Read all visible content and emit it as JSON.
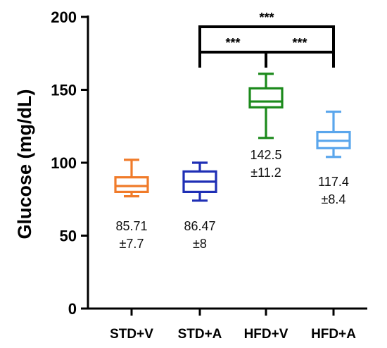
{
  "chart_data": {
    "type": "box",
    "ylabel": "Glucose (mg/dL)",
    "ylim": [
      0,
      200
    ],
    "yticks": [
      0,
      50,
      100,
      150,
      200
    ],
    "categories": [
      "STD+V",
      "STD+A",
      "HFD+V",
      "HFD+A"
    ],
    "colors": [
      "#f07b2a",
      "#1f2fb5",
      "#1c8a1c",
      "#5aa6ec"
    ],
    "boxes": [
      {
        "min": 77,
        "q1": 80,
        "median": 84,
        "q3": 90,
        "max": 102
      },
      {
        "min": 74,
        "q1": 80,
        "median": 87,
        "q3": 94,
        "max": 100
      },
      {
        "min": 117,
        "q1": 138,
        "median": 142,
        "q3": 151,
        "max": 161
      },
      {
        "min": 104,
        "q1": 110,
        "median": 115,
        "q3": 121,
        "max": 135
      }
    ],
    "annotations": [
      {
        "mean": "85.71",
        "sd": "±7.7"
      },
      {
        "mean": "86.47",
        "sd": "±8"
      },
      {
        "mean": "142.5",
        "sd": "±11.2"
      },
      {
        "mean": "117.4",
        "sd": "±8.4"
      }
    ],
    "significance": [
      {
        "from": 1,
        "to": 3,
        "label": "***"
      },
      {
        "from": 1,
        "to": 2,
        "label": "***"
      },
      {
        "from": 2,
        "to": 3,
        "label": "***"
      }
    ]
  }
}
